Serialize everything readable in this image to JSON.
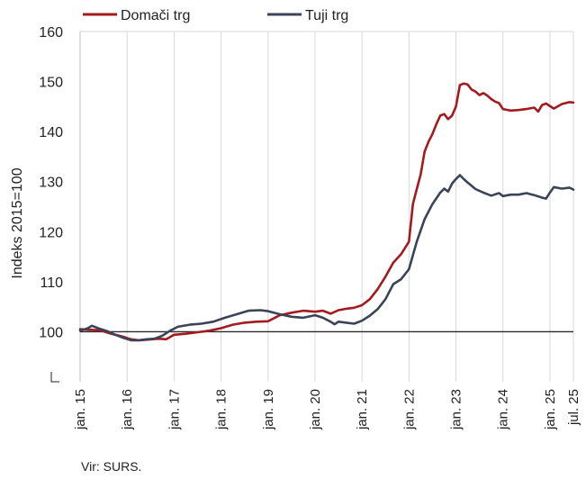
{
  "chart_data": {
    "type": "line",
    "title": "",
    "ylabel": "Indeks 2015=100",
    "xlabel": "",
    "ylim": [
      90,
      160
    ],
    "yticks": [
      100,
      110,
      120,
      130,
      140,
      150,
      160
    ],
    "ytick_labels": [
      "100",
      "110",
      "120",
      "130",
      "140",
      "150",
      "160"
    ],
    "reference_line": 100,
    "x_start": "2015-01",
    "x_end": "2025-07",
    "xtick_labels": [
      "jan. 15",
      "jan. 16",
      "jan. 17",
      "jan. 18",
      "jan. 19",
      "jan. 20",
      "jan. 21",
      "jan. 22",
      "jan. 23",
      "jan. 24",
      "jan. 25",
      "jul. 25"
    ],
    "legend_position": "top-left",
    "grid": "vertical-at-year-ticks",
    "series": [
      {
        "name": "Domači trg",
        "color": "#a31a1f",
        "points": [
          [
            "2015-01",
            100.5
          ],
          [
            "2015-03",
            100.4
          ],
          [
            "2015-06",
            100.3
          ],
          [
            "2015-09",
            99.6
          ],
          [
            "2015-12",
            99.0
          ],
          [
            "2016-02",
            98.5
          ],
          [
            "2016-04",
            98.3
          ],
          [
            "2016-06",
            98.4
          ],
          [
            "2016-09",
            98.6
          ],
          [
            "2016-11",
            98.5
          ],
          [
            "2017-01",
            99.4
          ],
          [
            "2017-04",
            99.6
          ],
          [
            "2017-07",
            99.9
          ],
          [
            "2017-10",
            100.2
          ],
          [
            "2018-01",
            100.7
          ],
          [
            "2018-04",
            101.4
          ],
          [
            "2018-07",
            101.8
          ],
          [
            "2018-10",
            102.0
          ],
          [
            "2019-01",
            102.1
          ],
          [
            "2019-04",
            103.3
          ],
          [
            "2019-07",
            103.8
          ],
          [
            "2019-10",
            104.2
          ],
          [
            "2020-01",
            104.0
          ],
          [
            "2020-03",
            104.2
          ],
          [
            "2020-05",
            103.6
          ],
          [
            "2020-07",
            104.3
          ],
          [
            "2020-09",
            104.6
          ],
          [
            "2020-11",
            104.8
          ],
          [
            "2021-01",
            105.3
          ],
          [
            "2021-03",
            106.5
          ],
          [
            "2021-05",
            108.5
          ],
          [
            "2021-07",
            111.0
          ],
          [
            "2021-09",
            113.8
          ],
          [
            "2021-11",
            115.5
          ],
          [
            "2022-01",
            118.0
          ],
          [
            "2022-02",
            125.5
          ],
          [
            "2022-03",
            128.5
          ],
          [
            "2022-04",
            131.5
          ],
          [
            "2022-05",
            136.0
          ],
          [
            "2022-06",
            138.0
          ],
          [
            "2022-07",
            139.5
          ],
          [
            "2022-08",
            141.5
          ],
          [
            "2022-09",
            143.2
          ],
          [
            "2022-10",
            143.5
          ],
          [
            "2022-11",
            142.5
          ],
          [
            "2022-12",
            143.2
          ],
          [
            "2023-01",
            145.0
          ],
          [
            "2023-02",
            149.3
          ],
          [
            "2023-03",
            149.6
          ],
          [
            "2023-04",
            149.4
          ],
          [
            "2023-05",
            148.4
          ],
          [
            "2023-06",
            148.0
          ],
          [
            "2023-07",
            147.3
          ],
          [
            "2023-08",
            147.7
          ],
          [
            "2023-09",
            147.2
          ],
          [
            "2023-10",
            146.5
          ],
          [
            "2023-11",
            146.0
          ],
          [
            "2023-12",
            145.7
          ],
          [
            "2024-01",
            144.5
          ],
          [
            "2024-03",
            144.2
          ],
          [
            "2024-05",
            144.3
          ],
          [
            "2024-07",
            144.5
          ],
          [
            "2024-09",
            144.8
          ],
          [
            "2024-10",
            144.0
          ],
          [
            "2024-11",
            145.3
          ],
          [
            "2024-12",
            145.6
          ],
          [
            "2025-02",
            144.6
          ],
          [
            "2025-04",
            145.5
          ],
          [
            "2025-06",
            145.9
          ],
          [
            "2025-07",
            145.8
          ]
        ]
      },
      {
        "name": "Tuji trg",
        "color": "#3b4356",
        "points": [
          [
            "2015-01",
            100.2
          ],
          [
            "2015-03",
            100.7
          ],
          [
            "2015-04",
            101.2
          ],
          [
            "2015-06",
            100.6
          ],
          [
            "2015-08",
            100.1
          ],
          [
            "2015-10",
            99.4
          ],
          [
            "2015-12",
            98.8
          ],
          [
            "2016-02",
            98.3
          ],
          [
            "2016-04",
            98.3
          ],
          [
            "2016-06",
            98.5
          ],
          [
            "2016-08",
            98.6
          ],
          [
            "2016-10",
            99.2
          ],
          [
            "2016-12",
            100.2
          ],
          [
            "2017-02",
            101.0
          ],
          [
            "2017-05",
            101.4
          ],
          [
            "2017-08",
            101.6
          ],
          [
            "2017-11",
            102.0
          ],
          [
            "2018-02",
            102.8
          ],
          [
            "2018-05",
            103.5
          ],
          [
            "2018-08",
            104.2
          ],
          [
            "2018-11",
            104.3
          ],
          [
            "2019-01",
            104.1
          ],
          [
            "2019-04",
            103.5
          ],
          [
            "2019-07",
            103.0
          ],
          [
            "2019-10",
            102.8
          ],
          [
            "2020-01",
            103.3
          ],
          [
            "2020-03",
            102.8
          ],
          [
            "2020-05",
            102.0
          ],
          [
            "2020-06",
            101.5
          ],
          [
            "2020-07",
            102.0
          ],
          [
            "2020-09",
            101.8
          ],
          [
            "2020-11",
            101.6
          ],
          [
            "2021-01",
            102.2
          ],
          [
            "2021-03",
            103.2
          ],
          [
            "2021-05",
            104.5
          ],
          [
            "2021-07",
            106.5
          ],
          [
            "2021-09",
            109.5
          ],
          [
            "2021-11",
            110.5
          ],
          [
            "2022-01",
            112.5
          ],
          [
            "2022-03",
            118.0
          ],
          [
            "2022-05",
            122.5
          ],
          [
            "2022-07",
            125.5
          ],
          [
            "2022-09",
            127.8
          ],
          [
            "2022-10",
            128.6
          ],
          [
            "2022-11",
            128.0
          ],
          [
            "2022-12",
            129.6
          ],
          [
            "2023-01",
            130.5
          ],
          [
            "2023-02",
            131.3
          ],
          [
            "2023-03",
            130.5
          ],
          [
            "2023-04",
            129.8
          ],
          [
            "2023-06",
            128.5
          ],
          [
            "2023-08",
            127.8
          ],
          [
            "2023-10",
            127.2
          ],
          [
            "2023-12",
            127.7
          ],
          [
            "2024-01",
            127.1
          ],
          [
            "2024-03",
            127.4
          ],
          [
            "2024-05",
            127.4
          ],
          [
            "2024-07",
            127.7
          ],
          [
            "2024-09",
            127.3
          ],
          [
            "2024-11",
            126.8
          ],
          [
            "2024-12",
            126.6
          ],
          [
            "2025-01",
            127.8
          ],
          [
            "2025-02",
            128.9
          ],
          [
            "2025-04",
            128.6
          ],
          [
            "2025-06",
            128.8
          ],
          [
            "2025-07",
            128.4
          ]
        ]
      }
    ]
  },
  "source_note": "Vir: SURS."
}
